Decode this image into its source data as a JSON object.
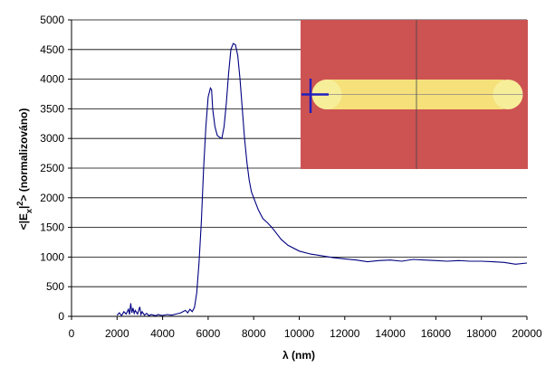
{
  "chart_data": {
    "type": "line",
    "xlabel": "λ (nm)",
    "ylabel_prefix": "<|E",
    "ylabel_sub": "x",
    "ylabel_mid": "|",
    "ylabel_sup": "2",
    "ylabel_suffix": "> (normalizováno)",
    "xlim": [
      0,
      20000
    ],
    "ylim": [
      0,
      5000
    ],
    "x_ticks": [
      0,
      2000,
      4000,
      6000,
      8000,
      10000,
      12000,
      14000,
      16000,
      18000,
      20000
    ],
    "y_ticks": [
      0,
      500,
      1000,
      1500,
      2000,
      2500,
      3000,
      3500,
      4000,
      4500,
      5000
    ],
    "grid": "horizontal",
    "legend": "none",
    "line_color": "#000080",
    "series": [
      {
        "x": [
          2000,
          2100,
          2200,
          2300,
          2400,
          2500,
          2550,
          2600,
          2650,
          2700,
          2750,
          2800,
          2900,
          3000,
          3050,
          3100,
          3200,
          3300,
          3400,
          3500,
          3600,
          3700,
          3800,
          3900,
          4000,
          4200,
          4400,
          4600,
          4800,
          4900,
          5000,
          5100,
          5200,
          5300,
          5400,
          5500,
          5600,
          5700,
          5800,
          5900,
          6000,
          6100,
          6150,
          6200,
          6300,
          6400,
          6500,
          6600,
          6700,
          6800,
          6900,
          7000,
          7100,
          7200,
          7300,
          7400,
          7500,
          7600,
          7700,
          7800,
          7900,
          8000,
          8200,
          8400,
          8600,
          8800,
          9000,
          9200,
          9500,
          10000,
          10500,
          11000,
          11500,
          12000,
          12500,
          13000,
          13500,
          14000,
          14500,
          15000,
          15500,
          16000,
          16500,
          17000,
          17500,
          18000,
          18500,
          19000,
          19500,
          20000
        ],
        "y": [
          20,
          60,
          10,
          80,
          40,
          120,
          30,
          220,
          60,
          140,
          50,
          100,
          40,
          160,
          30,
          80,
          20,
          50,
          10,
          30,
          20,
          10,
          30,
          20,
          15,
          30,
          20,
          40,
          60,
          80,
          100,
          60,
          120,
          80,
          150,
          400,
          900,
          1600,
          2500,
          3200,
          3700,
          3850,
          3820,
          3500,
          3200,
          3050,
          3020,
          3000,
          3200,
          3600,
          4100,
          4500,
          4600,
          4580,
          4400,
          4000,
          3500,
          3000,
          2600,
          2300,
          2100,
          2000,
          1800,
          1650,
          1580,
          1500,
          1400,
          1300,
          1200,
          1100,
          1050,
          1020,
          990,
          970,
          950,
          920,
          940,
          950,
          930,
          960,
          950,
          940,
          930,
          940,
          930,
          930,
          920,
          910,
          880,
          900
        ]
      }
    ]
  },
  "inset": {
    "background": "#cd5353",
    "rod_color": "#f5e07a",
    "cap_color": "#f7ee9a",
    "crosshair_color": "#1f1fbf"
  }
}
